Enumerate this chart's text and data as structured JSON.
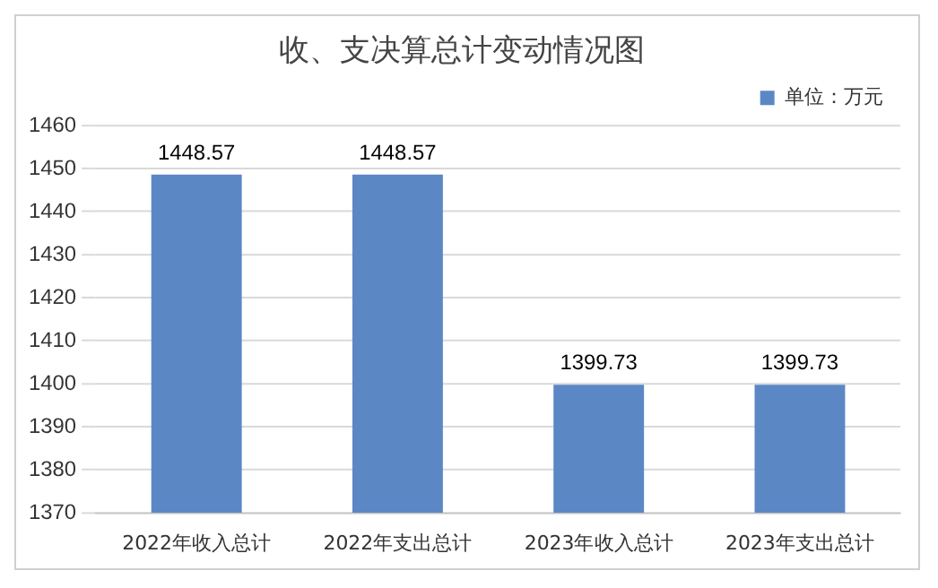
{
  "chart_data": {
    "type": "bar",
    "title": "收、支决算总计变动情况图",
    "categories": [
      "2022年收入总计",
      "2022年支出总计",
      "2023年收入总计",
      "2023年支出总计"
    ],
    "series": [
      {
        "name": "单位：万元",
        "color": "#5b87c5",
        "values": [
          1448.57,
          1448.57,
          1399.73,
          1399.73
        ]
      }
    ],
    "ylim": [
      1370,
      1460
    ],
    "yticks": [
      1370,
      1380,
      1390,
      1400,
      1410,
      1420,
      1430,
      1440,
      1450,
      1460
    ],
    "grid": "y",
    "legend": "top right",
    "data_labels": true
  }
}
